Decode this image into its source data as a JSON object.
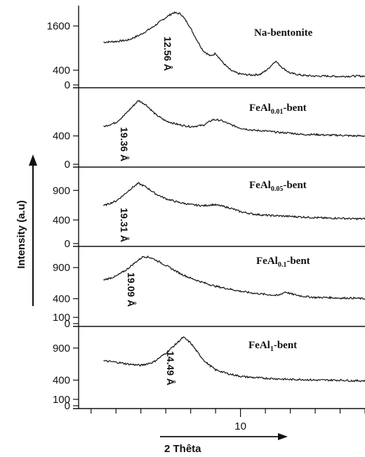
{
  "chart_data": {
    "type": "line",
    "title": "",
    "xlabel": "2 Thêta",
    "ylabel": "Intensity (a.u)",
    "x_range": [
      3.5,
      15
    ],
    "x_ticks": [
      10
    ],
    "grid": false,
    "panels": [
      {
        "name": "Na-bentonite",
        "label_main": "Na-bentonite",
        "label_sub": "",
        "label_tail": "",
        "peak_label": "12.56 Å",
        "y_ticks": [
          {
            "label": "1600",
            "value": 1600
          },
          {
            "label": "400",
            "value": 400
          },
          {
            "label": "0",
            "value": 0
          }
        ],
        "ylim": [
          0,
          2000
        ],
        "x": [
          4.5,
          5.0,
          5.5,
          6.0,
          6.5,
          7.0,
          7.3,
          7.6,
          7.9,
          8.2,
          8.5,
          8.8,
          9.0,
          9.3,
          9.6,
          9.9,
          10.2,
          10.5,
          10.8,
          11.1,
          11.4,
          11.7,
          12.0,
          12.5,
          13.0,
          13.5,
          14.0,
          14.5,
          15.0
        ],
        "y": [
          1160,
          1180,
          1220,
          1370,
          1580,
          1830,
          1960,
          1930,
          1660,
          1280,
          930,
          780,
          860,
          600,
          400,
          310,
          280,
          270,
          290,
          430,
          650,
          460,
          320,
          260,
          240,
          240,
          230,
          240,
          240
        ]
      },
      {
        "name": "FeAl0.01-bent",
        "label_main": "FeAl",
        "label_sub": "0.01",
        "label_tail": "-bent",
        "peak_label": "19.36 Å",
        "y_ticks": [
          {
            "label": "400",
            "value": 400
          },
          {
            "label": "0",
            "value": 0
          }
        ],
        "ylim": [
          0,
          1000
        ],
        "x": [
          4.5,
          5.0,
          5.3,
          5.6,
          5.9,
          6.2,
          6.6,
          7.0,
          7.5,
          8.0,
          8.5,
          8.9,
          9.2,
          9.6,
          10.0,
          10.5,
          11.0,
          11.5,
          12.0,
          12.5,
          13.0,
          13.5,
          14.0,
          14.5,
          15.0
        ],
        "y": [
          530,
          590,
          680,
          790,
          900,
          840,
          700,
          610,
          560,
          530,
          550,
          630,
          620,
          560,
          510,
          480,
          470,
          450,
          440,
          420,
          420,
          410,
          410,
          400,
          400
        ]
      },
      {
        "name": "FeAl0.05-bent",
        "label_main": "FeAl",
        "label_sub": "0.05",
        "label_tail": "-bent",
        "peak_label": "19.31 Å",
        "y_ticks": [
          {
            "label": "900",
            "value": 900
          },
          {
            "label": "400",
            "value": 400
          },
          {
            "label": "0",
            "value": 0
          }
        ],
        "ylim": [
          0,
          1200
        ],
        "x": [
          4.5,
          5.0,
          5.3,
          5.6,
          5.9,
          6.2,
          6.6,
          7.0,
          7.5,
          8.0,
          8.5,
          8.9,
          9.2,
          9.6,
          10.0,
          10.5,
          11.0,
          11.5,
          12.0,
          12.5,
          13.0,
          13.5,
          14.0,
          14.5,
          15.0
        ],
        "y": [
          640,
          720,
          820,
          930,
          1020,
          960,
          840,
          760,
          700,
          660,
          640,
          660,
          640,
          600,
          540,
          500,
          480,
          470,
          460,
          450,
          440,
          430,
          430,
          420,
          420
        ]
      },
      {
        "name": "FeAl0.1-bent",
        "label_main": "FeAl",
        "label_sub": "0.1",
        "label_tail": "-bent",
        "peak_label": "19.09 Å",
        "y_ticks": [
          {
            "label": "900",
            "value": 900
          },
          {
            "label": "400",
            "value": 400
          },
          {
            "label": "100",
            "value": 100
          },
          {
            "label": "0",
            "value": 0
          }
        ],
        "ylim": [
          0,
          1150
        ],
        "x": [
          4.5,
          5.0,
          5.4,
          5.8,
          6.1,
          6.4,
          6.8,
          7.2,
          7.6,
          8.0,
          8.5,
          9.0,
          9.5,
          10.0,
          10.5,
          11.0,
          11.5,
          11.8,
          12.1,
          12.5,
          13.0,
          13.5,
          14.0,
          14.5,
          15.0
        ],
        "y": [
          700,
          760,
          860,
          990,
          1080,
          1060,
          980,
          890,
          800,
          730,
          660,
          600,
          560,
          520,
          490,
          470,
          450,
          510,
          470,
          440,
          420,
          420,
          410,
          410,
          400
        ]
      },
      {
        "name": "FeAl1-bent",
        "label_main": "FeAl",
        "label_sub": "1",
        "label_tail": "-bent",
        "peak_label": "14.49 Å",
        "y_ticks": [
          {
            "label": "900",
            "value": 900
          },
          {
            "label": "400",
            "value": 400
          },
          {
            "label": "100",
            "value": 100
          },
          {
            "label": "0",
            "value": 0
          }
        ],
        "ylim": [
          0,
          1150
        ],
        "x": [
          4.5,
          5.0,
          5.5,
          6.0,
          6.5,
          7.0,
          7.4,
          7.7,
          8.0,
          8.3,
          8.6,
          9.0,
          9.5,
          10.0,
          10.5,
          11.0,
          11.5,
          12.0,
          12.5,
          13.0,
          13.5,
          14.0,
          14.5,
          15.0
        ],
        "y": [
          700,
          680,
          650,
          630,
          680,
          820,
          960,
          1070,
          980,
          820,
          680,
          560,
          500,
          460,
          440,
          430,
          420,
          410,
          410,
          400,
          400,
          400,
          390,
          390
        ]
      }
    ]
  }
}
